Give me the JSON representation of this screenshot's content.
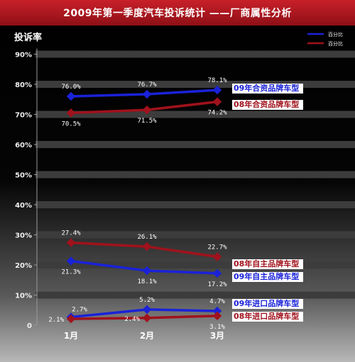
{
  "chart_data": {
    "type": "line",
    "title": "2009年第一季度汽车投诉统计 ——厂商属性分析",
    "ylabel": "投诉率",
    "xlabel": "",
    "categories": [
      "1月",
      "2月",
      "3月"
    ],
    "ylim": [
      0,
      90
    ],
    "yticks": [
      "0",
      "10%",
      "20%",
      "30%",
      "40%",
      "50%",
      "60%",
      "70%",
      "80%",
      "90%"
    ],
    "grid": "horizontal bands",
    "legend_position": "top-right",
    "legend": [
      {
        "label": "百分比",
        "color": "#1a22d8"
      },
      {
        "label": "百分比",
        "color": "#a0121c"
      }
    ],
    "series": [
      {
        "name": "09年合资品牌车型",
        "color": "#1a22d8",
        "values": [
          76.0,
          76.7,
          78.1
        ],
        "labels": [
          "76.0%",
          "76.7%",
          "78.1%"
        ],
        "label_pos": [
          "above",
          "above",
          "above"
        ]
      },
      {
        "name": "08年合资品牌车型",
        "color": "#a0121c",
        "values": [
          70.5,
          71.5,
          74.2
        ],
        "labels": [
          "70.5%",
          "71.5%",
          "74.2%"
        ],
        "label_pos": [
          "below",
          "below",
          "below"
        ]
      },
      {
        "name": "08年自主品牌车型",
        "color": "#a0121c",
        "values": [
          27.4,
          26.1,
          22.7
        ],
        "labels": [
          "27.4%",
          "26.1%",
          "22.7%"
        ],
        "label_pos": [
          "above",
          "above",
          "above"
        ]
      },
      {
        "name": "09年自主品牌车型",
        "color": "#1a22d8",
        "values": [
          21.3,
          18.1,
          17.2
        ],
        "labels": [
          "21.3%",
          "18.1%",
          "17.2%"
        ],
        "label_pos": [
          "below",
          "below",
          "below"
        ]
      },
      {
        "name": "09年进口品牌车型",
        "color": "#1a22d8",
        "values": [
          2.7,
          5.2,
          4.7
        ],
        "labels": [
          "2.7%",
          "5.2%",
          "4.7%"
        ],
        "label_pos": [
          "above-right",
          "above",
          "above"
        ]
      },
      {
        "name": "08年进口品牌车型",
        "color": "#a0121c",
        "values": [
          2.1,
          2.4,
          3.1
        ],
        "labels": [
          "2.1%",
          "2.4%",
          "3.1%"
        ],
        "label_pos": [
          "left",
          "left",
          "below"
        ]
      }
    ]
  }
}
